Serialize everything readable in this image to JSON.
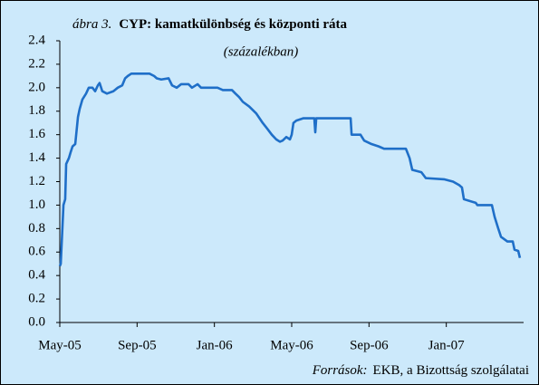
{
  "chart_data": {
    "type": "line",
    "title_label": "ábra 3.",
    "title": "CYP: kamatkülönbség és központi ráta",
    "subtitle": "(százalékban)",
    "source_label": "Források:",
    "source": "EKB, a Bizottság szolgálatai",
    "x": [
      0,
      0.05,
      0.19,
      0.28,
      0.33,
      0.47,
      0.56,
      0.66,
      0.8,
      0.94,
      1.03,
      1.17,
      1.36,
      1.5,
      1.69,
      1.83,
      1.97,
      2.06,
      2.2,
      2.44,
      2.77,
      3.0,
      3.23,
      3.38,
      3.52,
      3.7,
      4.64,
      4.88,
      5.02,
      5.25,
      5.63,
      5.81,
      6.05,
      6.28,
      6.66,
      6.84,
      7.13,
      7.31,
      8.16,
      8.44,
      8.91,
      9.09,
      9.28,
      9.47,
      9.8,
      10.17,
      10.5,
      10.74,
      10.97,
      11.2,
      11.39,
      11.53,
      11.72,
      11.91,
      12.0,
      12.09,
      12.24,
      12.61,
      13.08,
      13.17,
      13.22,
      13.27,
      15.05,
      15.1,
      15.56,
      15.75,
      16.13,
      16.5,
      16.78,
      17.91,
      18.1,
      18.24,
      18.71,
      18.94,
      19.88,
      20.35,
      20.67,
      20.81,
      20.91,
      21.52,
      21.61,
      22.36,
      22.5,
      22.69,
      22.83,
      23.16,
      23.44,
      23.53,
      23.72,
      23.81
    ],
    "series": [
      {
        "name": "CYP",
        "color": "#1f6fc8",
        "values": [
          0.48,
          0.5,
          1.0,
          1.05,
          1.35,
          1.4,
          1.45,
          1.5,
          1.52,
          1.75,
          1.82,
          1.9,
          1.95,
          2.0,
          2.0,
          1.97,
          2.02,
          2.04,
          1.97,
          1.95,
          1.97,
          2.0,
          2.02,
          2.08,
          2.1,
          2.12,
          2.12,
          2.1,
          2.08,
          2.07,
          2.08,
          2.02,
          2.0,
          2.03,
          2.03,
          2.0,
          2.03,
          2.0,
          2.0,
          1.98,
          1.98,
          1.95,
          1.92,
          1.88,
          1.84,
          1.78,
          1.7,
          1.65,
          1.6,
          1.56,
          1.54,
          1.55,
          1.58,
          1.56,
          1.6,
          1.7,
          1.72,
          1.74,
          1.74,
          1.74,
          1.62,
          1.74,
          1.74,
          1.6,
          1.6,
          1.55,
          1.52,
          1.5,
          1.48,
          1.48,
          1.4,
          1.3,
          1.28,
          1.23,
          1.22,
          1.2,
          1.17,
          1.15,
          1.05,
          1.02,
          1.0,
          1.0,
          0.9,
          0.8,
          0.73,
          0.69,
          0.69,
          0.62,
          0.61,
          0.55
        ]
      }
    ],
    "xlim": [
      0,
      24
    ],
    "xticks": [
      {
        "value": 0,
        "label": "May-05"
      },
      {
        "value": 4,
        "label": "Sep-05"
      },
      {
        "value": 8,
        "label": "Jan-06"
      },
      {
        "value": 12,
        "label": "May-06"
      },
      {
        "value": 16,
        "label": "Sep-06"
      },
      {
        "value": 20,
        "label": "Jan-07"
      }
    ],
    "ylim": [
      0,
      2.4
    ],
    "yticks": [
      {
        "value": 0,
        "label": "0.0"
      },
      0.2,
      0.4,
      0.6,
      0.8,
      {
        "value": 1,
        "label": "1.0"
      },
      1.2,
      1.4,
      1.6,
      1.8,
      {
        "value": 2,
        "label": "2.0"
      },
      2.2,
      2.4
    ],
    "background": "#cce9fb",
    "grid": false
  }
}
